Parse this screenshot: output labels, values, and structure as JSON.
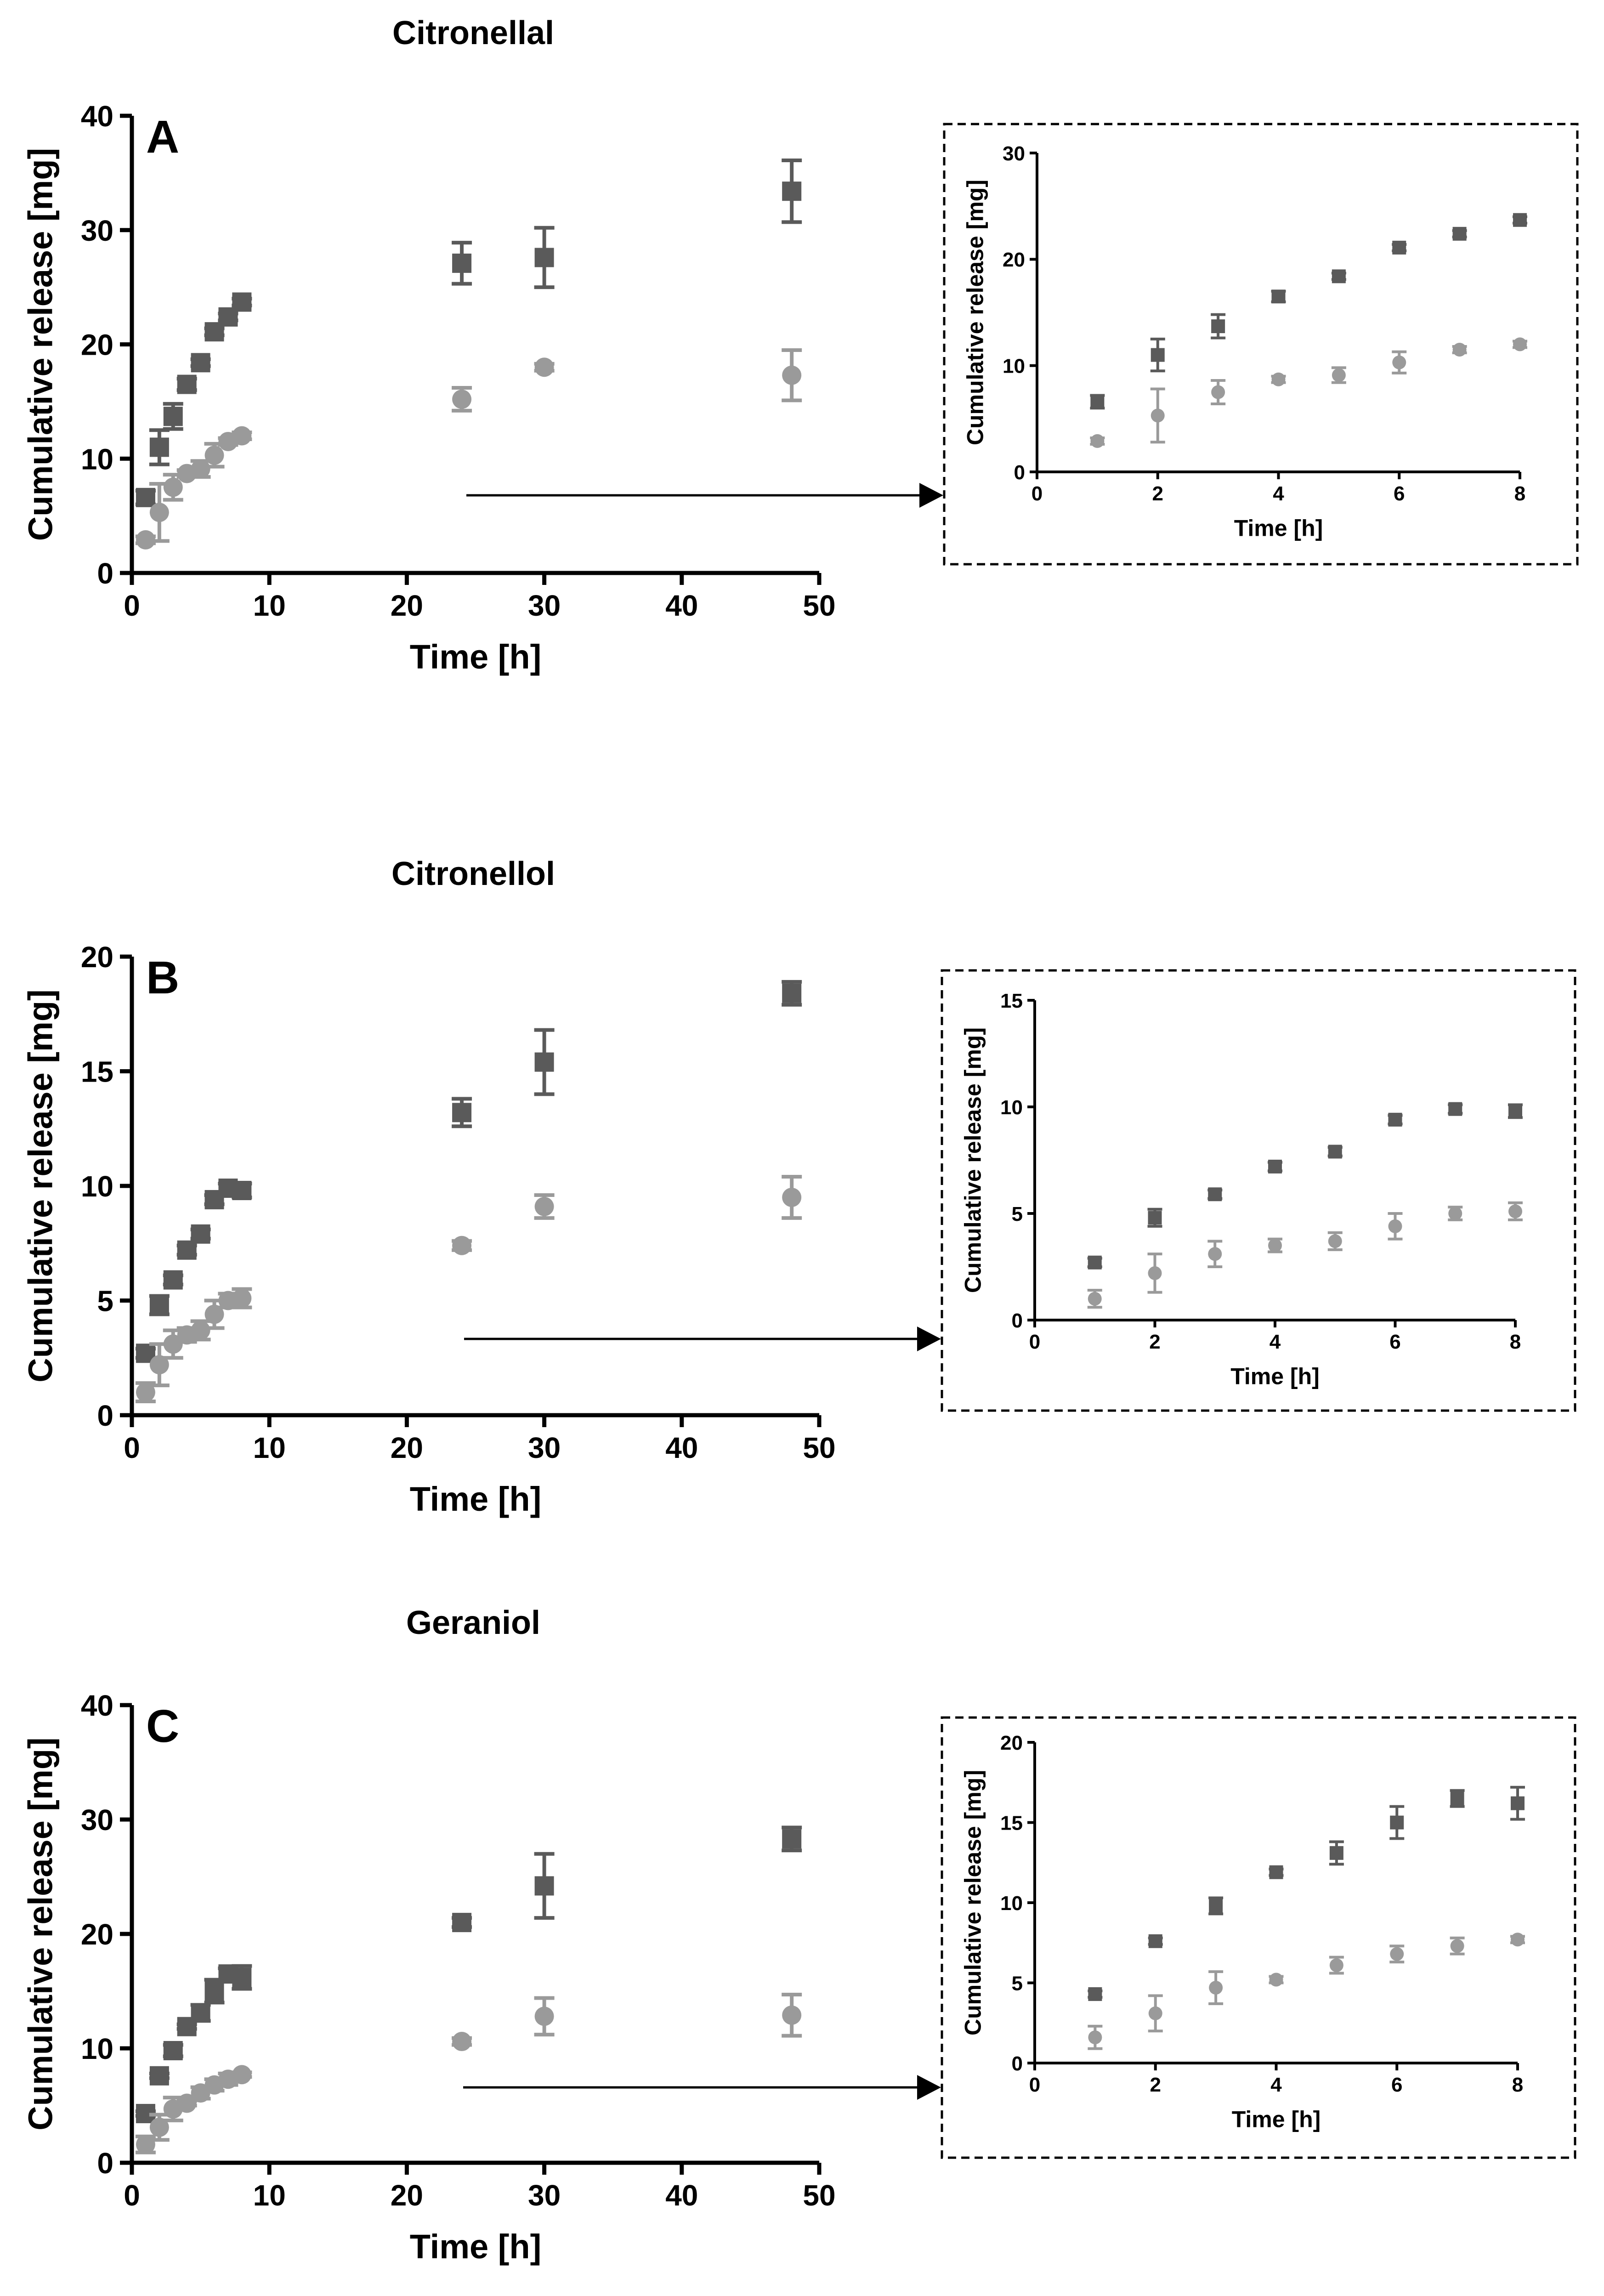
{
  "chart_data": [
    {
      "type": "scatter",
      "panel": "A",
      "title": "Citronellal",
      "xlabel": "Time [h]",
      "ylabel": "Cumulative release [mg]",
      "xlim": [
        0,
        50
      ],
      "ylim": [
        0,
        40
      ],
      "xticks": [
        0,
        10,
        20,
        30,
        40,
        50
      ],
      "yticks": [
        0,
        10,
        20,
        30,
        40
      ],
      "grid": false,
      "legend": "none",
      "series": [
        {
          "marker": "square",
          "color": "#5a5a5a",
          "x": [
            1,
            2,
            3,
            4,
            5,
            6,
            7,
            8,
            24,
            30,
            48
          ],
          "y": [
            6.6,
            11.0,
            13.7,
            16.5,
            18.4,
            21.1,
            22.4,
            23.7,
            27.1,
            27.6,
            33.4
          ],
          "err": [
            0.6,
            1.5,
            1.1,
            0.5,
            0.3,
            0.3,
            0.3,
            0.3,
            1.8,
            2.6,
            2.7
          ]
        },
        {
          "marker": "circle",
          "color": "#9a9a9a",
          "x": [
            1,
            2,
            3,
            4,
            5,
            6,
            7,
            8,
            24,
            30,
            48
          ],
          "y": [
            2.9,
            5.3,
            7.5,
            8.7,
            9.1,
            10.3,
            11.5,
            12.0,
            15.2,
            18.0,
            17.3
          ],
          "err": [
            0.3,
            2.5,
            1.1,
            0.3,
            0.7,
            1.0,
            0.3,
            0.3,
            1.0,
            0.3,
            2.2
          ]
        }
      ],
      "inset": {
        "xlabel": "Time [h]",
        "ylabel": "Cumulative release [mg]",
        "xlim": [
          0,
          8
        ],
        "ylim": [
          0,
          30
        ],
        "xticks": [
          0,
          2,
          4,
          6,
          8
        ],
        "yticks": [
          0,
          10,
          20,
          30
        ]
      }
    },
    {
      "type": "scatter",
      "panel": "B",
      "title": "Citronellol",
      "xlabel": "Time [h]",
      "ylabel": "Cumulative release [mg]",
      "xlim": [
        0,
        50
      ],
      "ylim": [
        0,
        20
      ],
      "xticks": [
        0,
        10,
        20,
        30,
        40,
        50
      ],
      "yticks": [
        0,
        5,
        10,
        15,
        20
      ],
      "grid": false,
      "legend": "none",
      "series": [
        {
          "marker": "square",
          "color": "#5a5a5a",
          "x": [
            1,
            2,
            3,
            4,
            5,
            6,
            7,
            8,
            24,
            30,
            48
          ],
          "y": [
            2.7,
            4.8,
            5.9,
            7.2,
            7.9,
            9.4,
            9.9,
            9.8,
            13.2,
            15.4,
            18.4
          ],
          "err": [
            0.2,
            0.4,
            0.2,
            0.2,
            0.2,
            0.2,
            0.2,
            0.3,
            0.6,
            1.4,
            0.5
          ]
        },
        {
          "marker": "circle",
          "color": "#9a9a9a",
          "x": [
            1,
            2,
            3,
            4,
            5,
            6,
            7,
            8,
            24,
            30,
            48
          ],
          "y": [
            1.0,
            2.2,
            3.1,
            3.5,
            3.7,
            4.4,
            5.0,
            5.1,
            7.4,
            9.1,
            9.5
          ],
          "err": [
            0.4,
            0.9,
            0.6,
            0.3,
            0.4,
            0.6,
            0.3,
            0.4,
            0.2,
            0.5,
            0.9
          ]
        }
      ],
      "inset": {
        "xlabel": "Time [h]",
        "ylabel": "Cumulative release [mg]",
        "xlim": [
          0,
          8
        ],
        "ylim": [
          0,
          15
        ],
        "xticks": [
          0,
          2,
          4,
          6,
          8
        ],
        "yticks": [
          0,
          5,
          10,
          15
        ]
      }
    },
    {
      "type": "scatter",
      "panel": "C",
      "title": "Geraniol",
      "xlabel": "Time [h]",
      "ylabel": "Cumulative release [mg]",
      "xlim": [
        0,
        50
      ],
      "ylim": [
        0,
        40
      ],
      "xticks": [
        0,
        10,
        20,
        30,
        40,
        50
      ],
      "yticks": [
        0,
        10,
        20,
        30,
        40
      ],
      "grid": false,
      "legend": "none",
      "series": [
        {
          "marker": "square",
          "color": "#5a5a5a",
          "x": [
            1,
            2,
            3,
            4,
            5,
            6,
            7,
            8,
            24,
            30,
            48
          ],
          "y": [
            4.3,
            7.6,
            9.8,
            11.9,
            13.1,
            15.0,
            16.5,
            16.2,
            21.0,
            24.2,
            28.3
          ],
          "err": [
            0.2,
            0.2,
            0.5,
            0.2,
            0.7,
            1.0,
            0.5,
            1.0,
            0.4,
            2.8,
            1.0
          ]
        },
        {
          "marker": "circle",
          "color": "#9a9a9a",
          "x": [
            1,
            2,
            3,
            4,
            5,
            6,
            7,
            8,
            24,
            30,
            48
          ],
          "y": [
            1.6,
            3.1,
            4.7,
            5.2,
            6.1,
            6.8,
            7.3,
            7.7,
            10.6,
            12.8,
            12.9
          ],
          "err": [
            0.7,
            1.1,
            1.0,
            0.2,
            0.5,
            0.5,
            0.5,
            0.2,
            0.3,
            1.6,
            1.8
          ]
        }
      ],
      "inset": {
        "xlabel": "Time [h]",
        "ylabel": "Cumulative release [mg]",
        "xlim": [
          0,
          8
        ],
        "ylim": [
          0,
          20
        ],
        "xticks": [
          0,
          2,
          4,
          6,
          8
        ],
        "yticks": [
          0,
          5,
          10,
          15,
          20
        ]
      }
    }
  ]
}
